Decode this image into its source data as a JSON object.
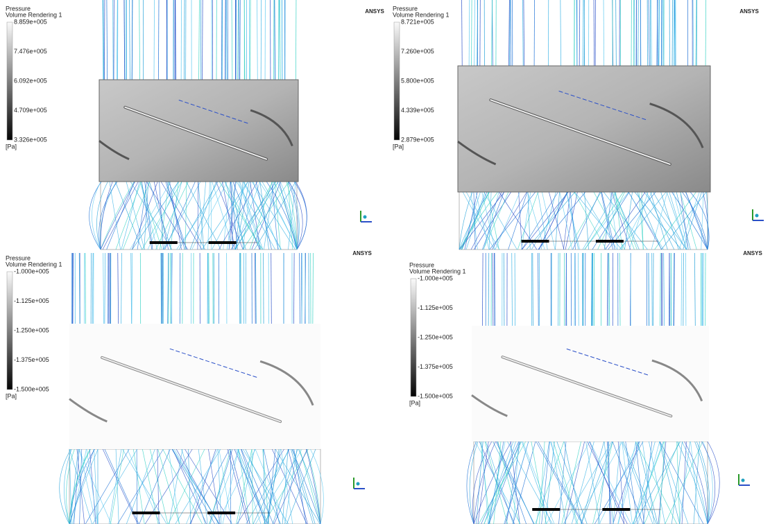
{
  "panels": [
    {
      "logo": "ANSYS",
      "legend": {
        "title": "Pressure",
        "subtitle": "Volume Rendering 1",
        "ticks": [
          "8.859e+005",
          "7.476e+005",
          "6.092e+005",
          "4.709e+005",
          "3.326e+005"
        ],
        "unit": "[Pa]"
      }
    },
    {
      "logo": "ANSYS",
      "legend": {
        "title": "Pressure",
        "subtitle": "Volume Rendering 1",
        "ticks": [
          "8.721e+005",
          "7.260e+005",
          "5.800e+005",
          "4.339e+005",
          "2.879e+005"
        ],
        "unit": "[Pa]"
      }
    },
    {
      "logo": "ANSYS",
      "legend": {
        "title": "Pressure",
        "subtitle": "Volume Rendering 1",
        "ticks": [
          "-1.000e+005",
          "-1.125e+005",
          "-1.250e+005",
          "-1.375e+005",
          "-1.500e+005"
        ],
        "unit": "[Pa]"
      }
    },
    {
      "logo": "ANSYS",
      "legend": {
        "title": "Pressure",
        "subtitle": "Volume Rendering 1",
        "ticks": [
          "-1.000e+005",
          "-1.125e+005",
          "-1.250e+005",
          "-1.375e+005",
          "-1.500e+005"
        ],
        "unit": "[Pa]"
      }
    }
  ]
}
